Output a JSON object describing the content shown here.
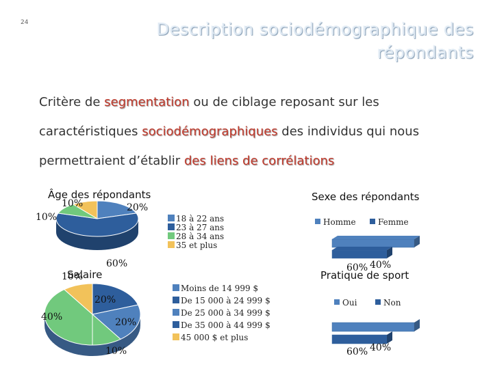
{
  "slide": {
    "number": "24",
    "title_line1": "Description sociodémographique des",
    "title_line2": "répondants"
  },
  "intro": {
    "p1": "Critère de ",
    "k1": "segmentation",
    "p2": " ou de ciblage reposant sur les",
    "p3": "caractéristiques ",
    "k2": "sociodémographiques",
    "p4": " des individus qui nous",
    "p5": "permettraient d’établir ",
    "k3": "des liens de corrélations"
  },
  "colors": {
    "blue": "#4f81bd",
    "green": "#71c97d",
    "yellow": "#f2c25a",
    "navy": "#2e5e9c",
    "accent": "#c0392b"
  },
  "chart_data": [
    {
      "type": "pie",
      "title": "Âge des répondants",
      "categories": [
        "18 à 22 ans",
        "23 à 27 ans",
        "28 à 34 ans",
        "35 et plus"
      ],
      "data_labels": [
        "20%",
        "60%",
        "10%",
        "10%"
      ],
      "values": [
        20,
        60,
        10,
        10
      ],
      "legend": "right"
    },
    {
      "type": "bar",
      "title": "Sexe des répondants",
      "categories": [
        "Homme",
        "Femme"
      ],
      "data_labels": [
        "60%",
        "40%"
      ],
      "values": [
        60,
        40
      ],
      "legend": "top"
    },
    {
      "type": "pie",
      "title": "Salaire",
      "categories": [
        "Moins de 14 999 $",
        "De 15 000 à 24 999 $",
        "De 25 000 à 34 999 $",
        "De 35 000 à 44 999 $",
        "45 000 $ et plus"
      ],
      "data_labels": [
        "20%",
        "20%",
        "10%",
        "40%",
        "10%"
      ],
      "values": [
        20,
        20,
        10,
        40,
        10
      ],
      "legend": "right"
    },
    {
      "type": "bar",
      "title": "Pratique de sport",
      "categories": [
        "Oui",
        "Non"
      ],
      "data_labels": [
        "60%",
        "40%"
      ],
      "values": [
        60,
        40
      ],
      "legend": "top"
    }
  ]
}
